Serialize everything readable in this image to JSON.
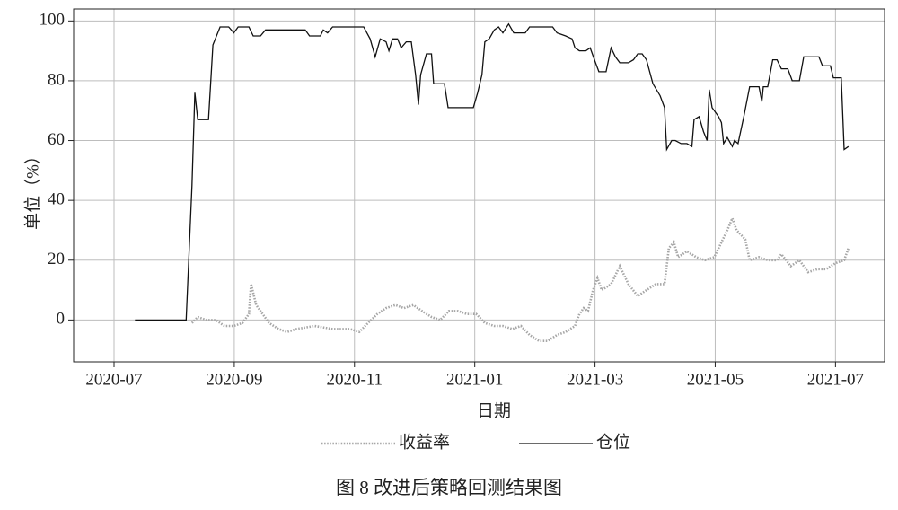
{
  "chart_data": {
    "type": "line",
    "xlabel": "日期",
    "ylabel": "单位（%）",
    "caption": "图 8  改进后策略回测结果图",
    "xlim": [
      2020.444,
      2021.568
    ],
    "ylim": [
      -14,
      104
    ],
    "xticks": [
      {
        "value": 2020.5,
        "label": "2020-07"
      },
      {
        "value": 2020.6667,
        "label": "2020-09"
      },
      {
        "value": 2020.8333,
        "label": "2020-11"
      },
      {
        "value": 2021.0,
        "label": "2021-01"
      },
      {
        "value": 2021.1667,
        "label": "2021-03"
      },
      {
        "value": 2021.3333,
        "label": "2021-05"
      },
      {
        "value": 2021.5,
        "label": "2021-07"
      }
    ],
    "yticks": [
      0,
      20,
      40,
      60,
      80,
      100
    ],
    "grid": true,
    "series": [
      {
        "name": "收益率",
        "color": "#a6a6a6",
        "style": "dotted",
        "x": [
          2020.608,
          2020.616,
          2020.628,
          2020.641,
          2020.653,
          2020.666,
          2020.678,
          2020.687,
          2020.69,
          2020.697,
          2020.703,
          2020.715,
          2020.728,
          2020.74,
          2020.753,
          2020.778,
          2020.803,
          2020.827,
          2020.84,
          2020.852,
          2020.865,
          2020.877,
          2020.89,
          2020.902,
          2020.915,
          2020.927,
          2020.94,
          2020.952,
          2020.964,
          2020.977,
          2020.989,
          2021.002,
          2021.014,
          2021.027,
          2021.039,
          2021.052,
          2021.064,
          2021.076,
          2021.089,
          2021.101,
          2021.114,
          2021.126,
          2021.139,
          2021.145,
          2021.151,
          2021.157,
          2021.164,
          2021.17,
          2021.176,
          2021.189,
          2021.201,
          2021.213,
          2021.226,
          2021.238,
          2021.251,
          2021.263,
          2021.269,
          2021.276,
          2021.282,
          2021.294,
          2021.307,
          2021.319,
          2021.332,
          2021.338,
          2021.35,
          2021.357,
          2021.363,
          2021.375,
          2021.381,
          2021.394,
          2021.406,
          2021.419,
          2021.425,
          2021.438,
          2021.45,
          2021.462,
          2021.475,
          2021.487,
          2021.5,
          2021.512,
          2021.518
        ],
        "values": [
          -1,
          1,
          0,
          0,
          -2,
          -2,
          -1,
          2,
          12,
          5,
          3,
          -1,
          -3,
          -4,
          -3,
          -2,
          -3,
          -3,
          -4,
          -1,
          2,
          4,
          5,
          4,
          5,
          3,
          1,
          0,
          3,
          3,
          2,
          2,
          -1,
          -2,
          -2,
          -3,
          -2,
          -5,
          -7,
          -7,
          -5,
          -4,
          -2,
          2,
          4,
          3,
          10,
          14,
          10,
          12,
          18,
          12,
          8,
          10,
          12,
          12,
          24,
          26,
          21,
          23,
          21,
          20,
          21,
          24,
          30,
          34,
          30,
          27,
          20,
          21,
          20,
          20,
          22,
          18,
          20,
          16,
          17,
          17,
          19,
          20,
          24
        ]
      },
      {
        "name": "仓位",
        "color": "#111111",
        "style": "solid",
        "x": [
          2020.529,
          2020.6,
          2020.608,
          2020.612,
          2020.616,
          2020.631,
          2020.637,
          2020.647,
          2020.659,
          2020.666,
          2020.672,
          2020.687,
          2020.693,
          2020.703,
          2020.71,
          2020.765,
          2020.771,
          2020.786,
          2020.79,
          2020.796,
          2020.803,
          2020.846,
          2020.855,
          2020.862,
          2020.869,
          2020.877,
          2020.881,
          2020.886,
          2020.893,
          2020.898,
          2020.905,
          2020.912,
          2020.918,
          2020.922,
          2020.925,
          2020.933,
          2020.94,
          2020.943,
          2020.958,
          2020.963,
          2020.981,
          2020.998,
          2021.004,
          2021.01,
          2021.014,
          2021.02,
          2021.027,
          2021.033,
          2021.039,
          2021.047,
          2021.054,
          2021.07,
          2021.076,
          2021.108,
          2021.114,
          2021.126,
          2021.135,
          2021.139,
          2021.145,
          2021.154,
          2021.16,
          2021.166,
          2021.172,
          2021.182,
          2021.189,
          2021.195,
          2021.201,
          2021.213,
          2021.22,
          2021.226,
          2021.232,
          2021.238,
          2021.247,
          2021.257,
          2021.263,
          2021.266,
          2021.273,
          2021.278,
          2021.286,
          2021.294,
          2021.301,
          2021.304,
          2021.311,
          2021.317,
          2021.322,
          2021.325,
          2021.329,
          2021.338,
          2021.342,
          2021.345,
          2021.35,
          2021.357,
          2021.36,
          2021.365,
          2021.373,
          2021.381,
          2021.394,
          2021.398,
          2021.4,
          2021.406,
          2021.413,
          2021.419,
          2021.425,
          2021.434,
          2021.44,
          2021.45,
          2021.456,
          2021.469,
          2021.477,
          2021.482,
          2021.493,
          2021.497,
          2021.508,
          2021.512,
          2021.518
        ],
        "values": [
          0,
          0,
          45,
          76,
          67,
          67,
          92,
          98,
          98,
          96,
          98,
          98,
          95,
          95,
          97,
          97,
          95,
          95,
          97,
          96,
          98,
          98,
          94,
          88,
          94,
          93,
          90,
          94,
          94,
          91,
          93,
          93,
          82,
          72,
          82,
          89,
          89,
          79,
          79,
          71,
          71,
          71,
          76,
          82,
          93,
          94,
          97,
          98,
          96,
          99,
          96,
          96,
          98,
          98,
          96,
          95,
          94,
          91,
          90,
          90,
          91,
          87,
          83,
          83,
          91,
          88,
          86,
          86,
          87,
          89,
          89,
          87,
          79,
          75,
          71,
          57,
          60,
          60,
          59,
          59,
          58,
          67,
          68,
          63,
          60,
          77,
          71,
          68,
          66,
          59,
          61,
          58,
          60,
          59,
          68,
          78,
          78,
          73,
          78,
          78,
          87,
          87,
          84,
          84,
          80,
          80,
          88,
          88,
          88,
          85,
          85,
          81,
          81,
          57,
          58
        ]
      }
    ]
  }
}
